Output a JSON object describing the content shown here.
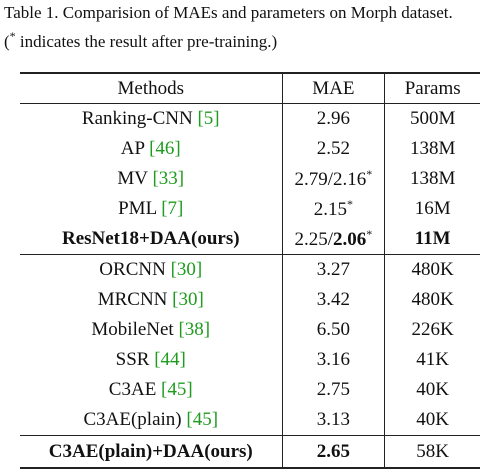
{
  "caption": {
    "line1": [
      {
        "text": "Table 1. Comparision of MAEs and parameters on Morph dataset."
      }
    ],
    "line2": [
      {
        "text": "("
      },
      {
        "text": "*",
        "sup": true
      },
      {
        "text": " indicates the result after pre-training.)"
      }
    ]
  },
  "table": {
    "header": [
      "Methods",
      "MAE",
      "Params"
    ],
    "groups": [
      [
        {
          "method": [
            {
              "text": "Ranking-CNN "
            },
            {
              "text": "[5]",
              "cite": true
            }
          ],
          "mae": [
            {
              "text": "2.96"
            }
          ],
          "params": [
            {
              "text": "500M"
            }
          ]
        },
        {
          "method": [
            {
              "text": "AP "
            },
            {
              "text": "[46]",
              "cite": true
            }
          ],
          "mae": [
            {
              "text": "2.52"
            }
          ],
          "params": [
            {
              "text": "138M"
            }
          ]
        },
        {
          "method": [
            {
              "text": "MV "
            },
            {
              "text": "[33]",
              "cite": true
            }
          ],
          "mae": [
            {
              "text": "2.79/2.16"
            },
            {
              "text": "*",
              "sup": true
            }
          ],
          "params": [
            {
              "text": "138M"
            }
          ]
        },
        {
          "method": [
            {
              "text": "PML "
            },
            {
              "text": "[7]",
              "cite": true
            }
          ],
          "mae": [
            {
              "text": "2.15"
            },
            {
              "text": "*",
              "sup": true
            }
          ],
          "params": [
            {
              "text": "16M"
            }
          ]
        },
        {
          "method": [
            {
              "text": "ResNet18+DAA(ours)",
              "bold": true
            }
          ],
          "mae": [
            {
              "text": "2.25/"
            },
            {
              "text": "2.06",
              "bold": true
            },
            {
              "text": "*",
              "sup": true
            }
          ],
          "params": [
            {
              "text": "11M",
              "bold": true
            }
          ]
        }
      ],
      [
        {
          "method": [
            {
              "text": "ORCNN "
            },
            {
              "text": "[30]",
              "cite": true
            }
          ],
          "mae": [
            {
              "text": "3.27"
            }
          ],
          "params": [
            {
              "text": "480K"
            }
          ]
        },
        {
          "method": [
            {
              "text": "MRCNN "
            },
            {
              "text": "[30]",
              "cite": true
            }
          ],
          "mae": [
            {
              "text": "3.42"
            }
          ],
          "params": [
            {
              "text": "480K"
            }
          ]
        },
        {
          "method": [
            {
              "text": "MobileNet "
            },
            {
              "text": "[38]",
              "cite": true
            }
          ],
          "mae": [
            {
              "text": "6.50"
            }
          ],
          "params": [
            {
              "text": "226K"
            }
          ]
        },
        {
          "method": [
            {
              "text": "SSR "
            },
            {
              "text": "[44]",
              "cite": true
            }
          ],
          "mae": [
            {
              "text": "3.16"
            }
          ],
          "params": [
            {
              "text": "41K"
            }
          ]
        },
        {
          "method": [
            {
              "text": "C3AE "
            },
            {
              "text": "[45]",
              "cite": true
            }
          ],
          "mae": [
            {
              "text": "2.75"
            }
          ],
          "params": [
            {
              "text": "40K"
            }
          ]
        },
        {
          "method": [
            {
              "text": "C3AE(plain) "
            },
            {
              "text": "[45]",
              "cite": true
            }
          ],
          "mae": [
            {
              "text": "3.13"
            }
          ],
          "params": [
            {
              "text": "40K"
            }
          ]
        }
      ],
      [
        {
          "method": [
            {
              "text": "C3AE(plain)+DAA(ours)",
              "bold": true
            }
          ],
          "mae": [
            {
              "text": "2.65",
              "bold": true
            }
          ],
          "params": [
            {
              "text": "58K"
            }
          ]
        }
      ]
    ]
  }
}
